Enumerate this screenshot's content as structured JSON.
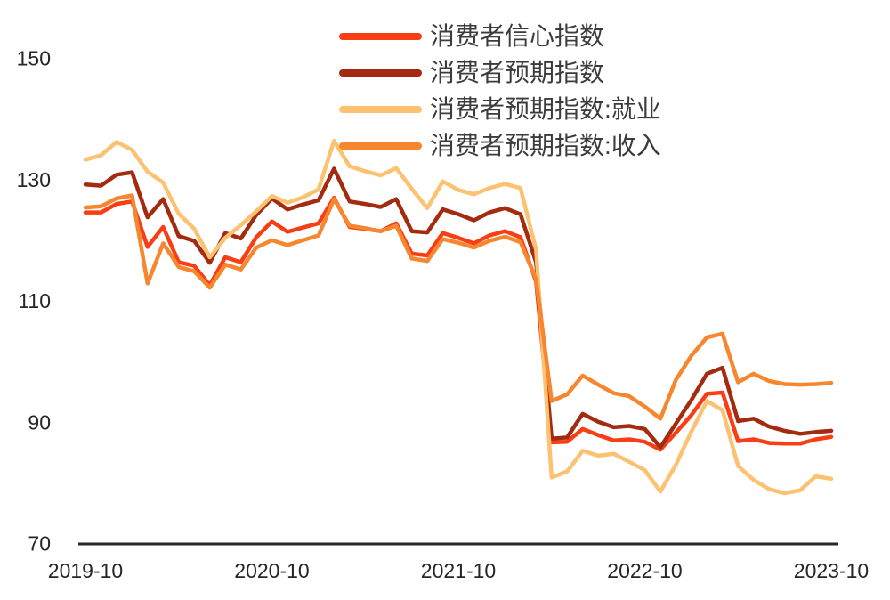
{
  "chart_data": {
    "type": "line",
    "title": "",
    "legend_position": "top-center",
    "grid": false,
    "axis_color": "#262626",
    "text_color": "#3b3b3b",
    "y_axis": {
      "min": 70,
      "max": 150,
      "ticks": [
        150,
        130,
        110,
        90,
        70
      ]
    },
    "x_axis": {
      "ticks": [
        "2019-10",
        "2020-10",
        "2021-10",
        "2022-10",
        "2023-10"
      ]
    },
    "categories": [
      "2019-10",
      "2019-11",
      "2019-12",
      "2020-01",
      "2020-02",
      "2020-03",
      "2020-04",
      "2020-05",
      "2020-06",
      "2020-07",
      "2020-08",
      "2020-09",
      "2020-10",
      "2020-11",
      "2020-12",
      "2021-01",
      "2021-02",
      "2021-03",
      "2021-04",
      "2021-05",
      "2021-06",
      "2021-07",
      "2021-08",
      "2021-09",
      "2021-10",
      "2021-11",
      "2021-12",
      "2022-01",
      "2022-02",
      "2022-03",
      "2022-04",
      "2022-05",
      "2022-06",
      "2022-07",
      "2022-08",
      "2022-09",
      "2022-10",
      "2022-11",
      "2022-12",
      "2023-01",
      "2023-02",
      "2023-03",
      "2023-04",
      "2023-05",
      "2023-06",
      "2023-07",
      "2023-08",
      "2023-09",
      "2023-10"
    ],
    "series": [
      {
        "name": "消费者信心指数",
        "color": "#F93D14",
        "values": [
          124.6,
          124.6,
          126.0,
          126.4,
          118.9,
          122.2,
          116.4,
          115.8,
          112.6,
          117.2,
          116.4,
          120.5,
          123.1,
          121.4,
          122.1,
          122.8,
          127.0,
          122.2,
          121.9,
          121.5,
          122.8,
          117.8,
          117.5,
          121.2,
          120.4,
          119.5,
          120.8,
          121.5,
          120.5,
          113.2,
          86.7,
          86.8,
          88.9,
          87.9,
          87.0,
          87.2,
          86.8,
          85.5,
          88.3,
          91.2,
          94.7,
          94.9,
          86.9,
          87.2,
          86.6,
          86.5,
          86.5,
          87.2,
          87.6
        ]
      },
      {
        "name": "消费者预期指数",
        "color": "#A32B10",
        "values": [
          129.2,
          129.0,
          130.8,
          131.2,
          123.8,
          126.8,
          120.7,
          119.9,
          116.3,
          121.2,
          120.3,
          124.2,
          126.9,
          125.1,
          125.9,
          126.6,
          131.8,
          126.4,
          126.0,
          125.5,
          126.8,
          121.5,
          121.3,
          125.1,
          124.3,
          123.3,
          124.6,
          125.3,
          124.3,
          116.4,
          87.3,
          87.5,
          91.4,
          90.1,
          89.2,
          89.4,
          88.9,
          85.9,
          89.8,
          93.7,
          98.0,
          99.0,
          90.2,
          90.6,
          89.3,
          88.6,
          88.1,
          88.4,
          88.6
        ]
      },
      {
        "name": "消费者预期指数:就业",
        "color": "#FCC271",
        "values": [
          133.3,
          134.0,
          136.2,
          134.9,
          131.3,
          129.5,
          124.4,
          121.9,
          117.2,
          120.4,
          122.5,
          124.8,
          127.3,
          126.2,
          127.1,
          128.4,
          136.4,
          132.2,
          131.4,
          130.7,
          131.9,
          128.5,
          125.3,
          129.7,
          128.3,
          127.6,
          128.6,
          129.3,
          128.6,
          118.5,
          80.9,
          81.9,
          85.3,
          84.5,
          84.8,
          83.5,
          82.1,
          78.6,
          83.0,
          88.5,
          93.5,
          92.0,
          82.8,
          80.5,
          79.0,
          78.3,
          78.8,
          81.1,
          80.7
        ]
      },
      {
        "name": "消费者预期指数:收入",
        "color": "#F6872F",
        "values": [
          125.4,
          125.6,
          126.9,
          127.4,
          112.9,
          119.5,
          115.6,
          114.9,
          112.2,
          116.0,
          115.2,
          118.8,
          120.0,
          119.2,
          120.0,
          120.8,
          126.8,
          122.4,
          122.0,
          121.5,
          122.4,
          117.0,
          116.6,
          120.2,
          119.6,
          118.8,
          119.9,
          120.6,
          119.7,
          113.6,
          93.5,
          94.6,
          97.7,
          96.2,
          94.8,
          94.3,
          92.6,
          90.6,
          97.0,
          101.0,
          104.0,
          104.6,
          96.6,
          98.0,
          96.8,
          96.3,
          96.2,
          96.3,
          96.5
        ]
      }
    ]
  }
}
